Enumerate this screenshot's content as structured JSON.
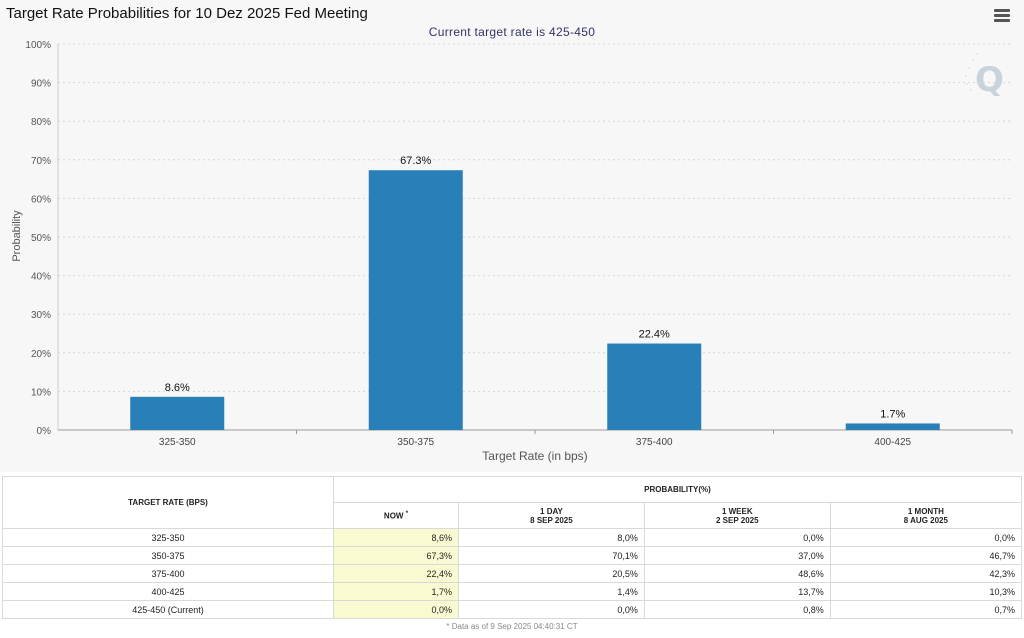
{
  "chart_data": {
    "type": "bar",
    "title": "Target Rate Probabilities for 10 Dez 2025 Fed Meeting",
    "subtitle": "Current target rate is 425-450",
    "xlabel": "Target Rate (in bps)",
    "ylabel": "Probability",
    "categories": [
      "325-350",
      "350-375",
      "375-400",
      "400-425"
    ],
    "values": [
      8.6,
      67.3,
      22.4,
      1.7
    ],
    "value_labels": [
      "8.6%",
      "67.3%",
      "22.4%",
      "1.7%"
    ],
    "ylim": [
      0,
      100
    ],
    "yticks": [
      "0%",
      "10%",
      "20%",
      "30%",
      "40%",
      "50%",
      "60%",
      "70%",
      "80%",
      "90%",
      "100%"
    ],
    "grid": true,
    "bar_color": "#2980b9"
  },
  "logo_text": "Q",
  "table": {
    "col_rate": "TARGET RATE (BPS)",
    "col_prob": "PROBABILITY(%)",
    "sub_now": "NOW",
    "sub_now_mark": "*",
    "sub_1day": "1 DAY",
    "sub_1day_date": "8 SEP 2025",
    "sub_1week": "1 WEEK",
    "sub_1week_date": "2 SEP 2025",
    "sub_1month": "1 MONTH",
    "sub_1month_date": "8 AUG 2025",
    "rows": [
      {
        "rate": "325-350",
        "now": "8,6%",
        "day": "8,0%",
        "week": "0,0%",
        "month": "0,0%"
      },
      {
        "rate": "350-375",
        "now": "67,3%",
        "day": "70,1%",
        "week": "37,0%",
        "month": "46,7%"
      },
      {
        "rate": "375-400",
        "now": "22,4%",
        "day": "20,5%",
        "week": "48,6%",
        "month": "42,3%"
      },
      {
        "rate": "400-425",
        "now": "1,7%",
        "day": "1,4%",
        "week": "13,7%",
        "month": "10,3%"
      },
      {
        "rate": "425-450 (Current)",
        "now": "0,0%",
        "day": "0,0%",
        "week": "0,8%",
        "month": "0,7%"
      }
    ],
    "footnote": "* Data as of 9 Sep 2025 04:40:31 CT"
  }
}
